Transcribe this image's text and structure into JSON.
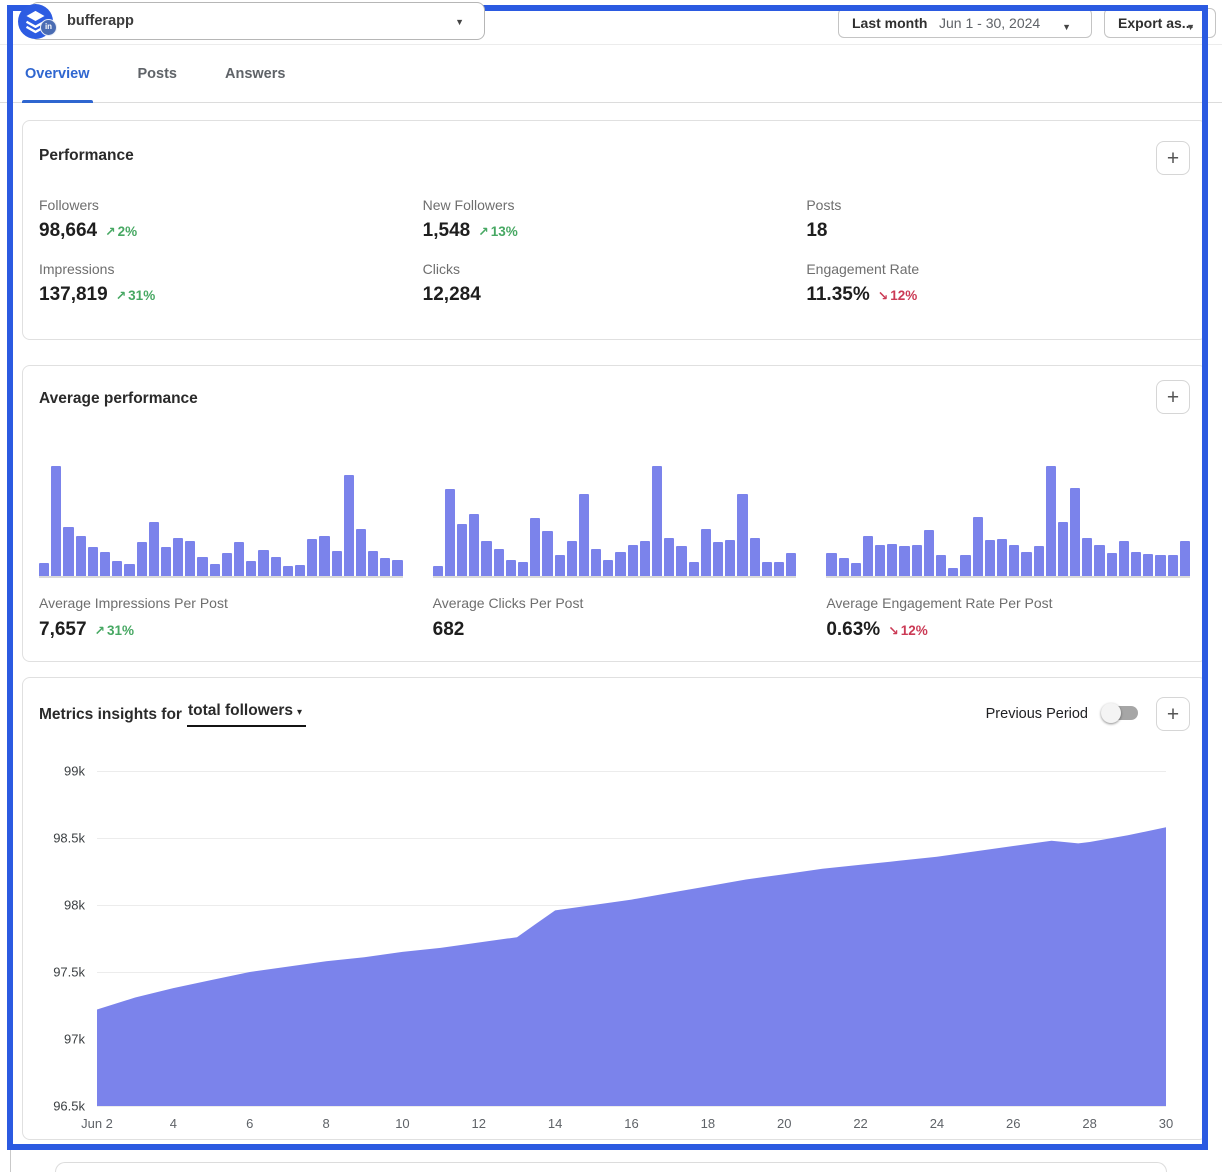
{
  "topbar": {
    "account_name": "bufferapp",
    "account_caret": "▼",
    "linkedin_badge_text": "in",
    "date_filter": {
      "preset_label": "Last month",
      "range_label": "Jun 1 - 30, 2024",
      "caret": "▼"
    },
    "export_label": "Export as...",
    "export_caret": "▼"
  },
  "tabs": [
    {
      "label": "Overview",
      "active": true
    },
    {
      "label": "Posts",
      "active": false
    },
    {
      "label": "Answers",
      "active": false
    }
  ],
  "performance_card": {
    "title": "Performance",
    "add_metric_icon": "plus-icon",
    "metrics": [
      {
        "label": "Followers",
        "value": "98,664",
        "arrow": "↗",
        "delta": "2%",
        "trend": "up"
      },
      {
        "label": "New Followers",
        "value": "1,548",
        "arrow": "↗",
        "delta": "13%",
        "trend": "up"
      },
      {
        "label": "Posts",
        "value": "18",
        "arrow": "",
        "delta": "",
        "trend": "none"
      },
      {
        "label": "Impressions",
        "value": "137,819",
        "arrow": "↗",
        "delta": "31%",
        "trend": "up"
      },
      {
        "label": "Clicks",
        "value": "12,284",
        "arrow": "",
        "delta": "",
        "trend": "none"
      },
      {
        "label": "Engagement Rate",
        "value": "11.35%",
        "arrow": "↘",
        "delta": "12%",
        "trend": "down"
      }
    ]
  },
  "average_performance_card": {
    "title": "Average performance",
    "stats": [
      {
        "label": "Average Impressions Per Post",
        "value": "7,657",
        "arrow": "↗",
        "delta": "31%",
        "trend": "up"
      },
      {
        "label": "Average Clicks Per Post",
        "value": "682",
        "arrow": "",
        "delta": "",
        "trend": "none"
      },
      {
        "label": "Average Engagement Rate Per Post",
        "value": "0.63%",
        "arrow": "↘",
        "delta": "12%",
        "trend": "down"
      }
    ]
  },
  "insights_card": {
    "title_prefix": "Metrics insights for",
    "selected_metric": "total followers",
    "selector_caret": "▾",
    "previous_period_label": "Previous Period",
    "previous_period_on": false
  },
  "chart_data": [
    {
      "id": "avg-impressions-per-post",
      "type": "bar",
      "title": "Average Impressions Per Post",
      "summary_value": "7,657",
      "delta": "+31%",
      "x_description": "daily bars for Jun 1 - 30, 2024 (no axis labels shown)",
      "relative_heights_pct": [
        12,
        100,
        45,
        36,
        26,
        22,
        14,
        11,
        31,
        49,
        26,
        35,
        32,
        17,
        11,
        21,
        31,
        14,
        24,
        17,
        9,
        10,
        34,
        36,
        23,
        92,
        43,
        23,
        16,
        15
      ]
    },
    {
      "id": "avg-clicks-per-post",
      "type": "bar",
      "title": "Average Clicks Per Post",
      "summary_value": "682",
      "delta": "",
      "x_description": "daily bars for Jun 1 - 30, 2024 (no axis labels shown)",
      "relative_heights_pct": [
        9,
        79,
        47,
        56,
        32,
        25,
        15,
        13,
        53,
        41,
        19,
        32,
        75,
        25,
        15,
        22,
        28,
        32,
        100,
        35,
        27,
        13,
        43,
        31,
        33,
        75,
        35,
        13,
        13,
        21
      ]
    },
    {
      "id": "avg-engagement-rate-per-post",
      "type": "bar",
      "title": "Average Engagement Rate Per Post",
      "summary_value": "0.63%",
      "delta": "-12%",
      "x_description": "daily bars for Jun 1 - 30, 2024 (no axis labels shown)",
      "relative_heights_pct": [
        21,
        16,
        12,
        36,
        28,
        29,
        27,
        28,
        42,
        19,
        7,
        19,
        54,
        33,
        34,
        28,
        22,
        27,
        100,
        49,
        80,
        35,
        28,
        21,
        32,
        22,
        20,
        19,
        19,
        32
      ]
    },
    {
      "id": "total-followers",
      "type": "area",
      "title": "Metrics insights for total followers",
      "series_name": "Total followers",
      "ylim_k": [
        96.5,
        99
      ],
      "yticks": [
        "99k",
        "98.5k",
        "98k",
        "97.5k",
        "97k",
        "96.5k"
      ],
      "xticks": [
        "Jun 2",
        "4",
        "6",
        "8",
        "10",
        "12",
        "14",
        "16",
        "18",
        "20",
        "22",
        "24",
        "26",
        "28",
        "30"
      ],
      "x_domain_days": [
        2,
        30
      ],
      "grid": "horizontal",
      "points": [
        {
          "day": 2,
          "followers_k": 97.22
        },
        {
          "day": 3,
          "followers_k": 97.31
        },
        {
          "day": 4,
          "followers_k": 97.38
        },
        {
          "day": 5,
          "followers_k": 97.44
        },
        {
          "day": 6,
          "followers_k": 97.5
        },
        {
          "day": 7,
          "followers_k": 97.54
        },
        {
          "day": 8,
          "followers_k": 97.58
        },
        {
          "day": 9,
          "followers_k": 97.61
        },
        {
          "day": 10,
          "followers_k": 97.65
        },
        {
          "day": 11,
          "followers_k": 97.68
        },
        {
          "day": 12,
          "followers_k": 97.72
        },
        {
          "day": 13,
          "followers_k": 97.76
        },
        {
          "day": 13.5,
          "followers_k": 97.86
        },
        {
          "day": 14,
          "followers_k": 97.96
        },
        {
          "day": 15,
          "followers_k": 98.0
        },
        {
          "day": 16,
          "followers_k": 98.04
        },
        {
          "day": 17,
          "followers_k": 98.09
        },
        {
          "day": 18,
          "followers_k": 98.14
        },
        {
          "day": 19,
          "followers_k": 98.19
        },
        {
          "day": 20,
          "followers_k": 98.23
        },
        {
          "day": 21,
          "followers_k": 98.27
        },
        {
          "day": 22,
          "followers_k": 98.3
        },
        {
          "day": 23,
          "followers_k": 98.33
        },
        {
          "day": 24,
          "followers_k": 98.36
        },
        {
          "day": 25,
          "followers_k": 98.4
        },
        {
          "day": 26,
          "followers_k": 98.44
        },
        {
          "day": 27,
          "followers_k": 98.48
        },
        {
          "day": 27.7,
          "followers_k": 98.46
        },
        {
          "day": 28,
          "followers_k": 98.47
        },
        {
          "day": 29,
          "followers_k": 98.52
        },
        {
          "day": 30,
          "followers_k": 98.58
        }
      ]
    }
  ],
  "colors": {
    "accent_purple": "#7b83eb",
    "positive_green": "#47a863",
    "negative_red": "#cb3a55",
    "active_tab_blue": "#2f66d0",
    "annotation_frame_blue": "#2b5ae1"
  }
}
